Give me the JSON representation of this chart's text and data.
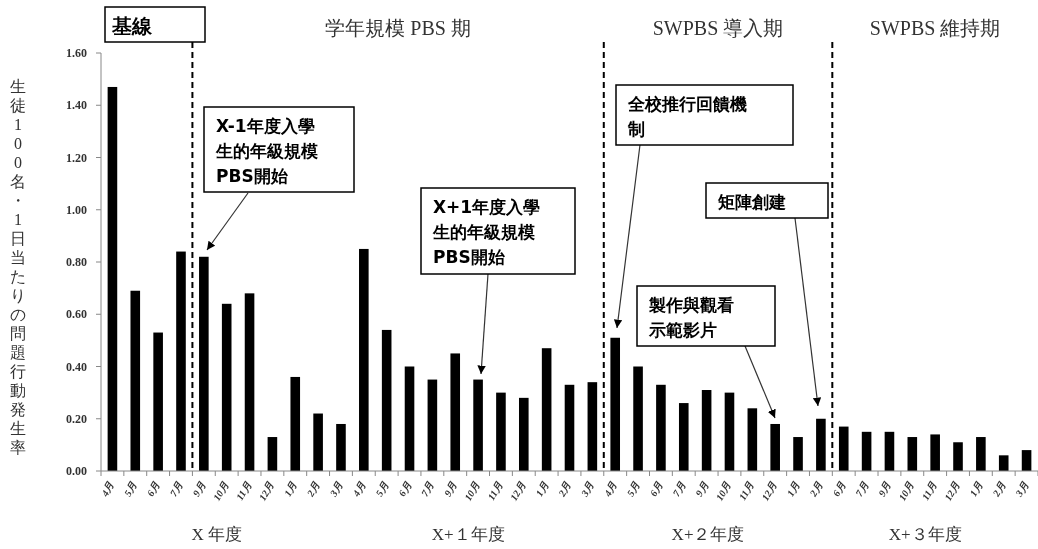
{
  "chart_data": {
    "type": "bar",
    "ylabel": "生徒 100 名・1 日当たりの問題行動発生率",
    "categories": [
      "4月",
      "5月",
      "6月",
      "7月",
      "9月",
      "10月",
      "11月",
      "12月",
      "1月",
      "2月",
      "3月",
      "4月",
      "5月",
      "6月",
      "7月",
      "9月",
      "10月",
      "11月",
      "12月",
      "1月",
      "2月",
      "3月",
      "4月",
      "5月",
      "6月",
      "7月",
      "9月",
      "10月",
      "11月",
      "12月",
      "1月",
      "2月",
      "6月",
      "7月",
      "9月",
      "10月",
      "11月",
      "12月",
      "1月",
      "2月",
      "3月"
    ],
    "values": [
      1.47,
      0.69,
      0.53,
      0.84,
      0.82,
      0.64,
      0.68,
      0.13,
      0.36,
      0.22,
      0.18,
      0.85,
      0.54,
      0.4,
      0.35,
      0.45,
      0.35,
      0.3,
      0.28,
      0.47,
      0.33,
      0.34,
      0.51,
      0.4,
      0.33,
      0.26,
      0.31,
      0.3,
      0.24,
      0.18,
      0.13,
      0.2,
      0.17,
      0.15,
      0.15,
      0.13,
      0.14,
      0.11,
      0.13,
      0.06,
      0.08
    ],
    "color": "#000000",
    "ylim": [
      0,
      1.6
    ],
    "yticks": [
      {
        "value": 0,
        "label": "0.00"
      },
      {
        "value": 0.2,
        "label": "0.20"
      },
      {
        "value": 0.4,
        "label": "0.40"
      },
      {
        "value": 0.6,
        "label": "0.60"
      },
      {
        "value": 0.8,
        "label": "0.80"
      },
      {
        "value": 1.0,
        "label": "1.00"
      },
      {
        "value": 1.2,
        "label": "1.20"
      },
      {
        "value": 1.4,
        "label": "1.40"
      },
      {
        "value": 1.6,
        "label": "1.60"
      }
    ],
    "annotations": [
      "基線",
      "学年規模 PBS 期",
      "SWPBS 導入期",
      "SWPBS 維持期",
      "X 年度",
      "X+１年度",
      "X+２年度",
      "X+３年度",
      "X-1年度入學生的年級規模PBS開始",
      "X+1年度入學生的年級規模PBS開始",
      "全校推行回饋機制",
      "製作與觀看示範影片",
      "矩陣創建"
    ],
    "grid": false
  }
}
